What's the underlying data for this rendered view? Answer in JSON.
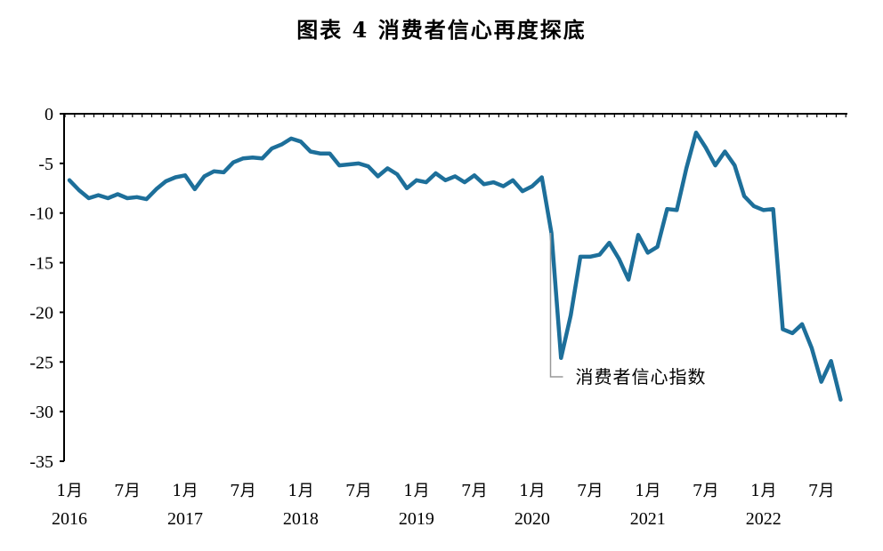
{
  "chart_data": {
    "type": "line",
    "title": "图表 4 消费者信心再度探底",
    "xlabel": "",
    "ylabel": "",
    "ylim": [
      -35,
      0
    ],
    "yticks": [
      0,
      -5,
      -10,
      -15,
      -20,
      -25,
      -30,
      -35
    ],
    "x_tick_labels": [
      {
        "month": "1月",
        "year": "2016"
      },
      {
        "month": "7月",
        "year": ""
      },
      {
        "month": "1月",
        "year": "2017"
      },
      {
        "month": "7月",
        "year": ""
      },
      {
        "month": "1月",
        "year": "2018"
      },
      {
        "month": "7月",
        "year": ""
      },
      {
        "month": "1月",
        "year": "2019"
      },
      {
        "month": "7月",
        "year": ""
      },
      {
        "month": "1月",
        "year": "2020"
      },
      {
        "month": "7月",
        "year": ""
      },
      {
        "month": "1月",
        "year": "2021"
      },
      {
        "month": "7月",
        "year": ""
      },
      {
        "month": "1月",
        "year": "2022"
      },
      {
        "month": "7月",
        "year": ""
      }
    ],
    "color": "#1d6f9a",
    "series": [
      {
        "name": "消费者信心指数",
        "start": "2016-01",
        "values": [
          -6.7,
          -7.7,
          -8.5,
          -8.2,
          -8.5,
          -8.1,
          -8.5,
          -8.4,
          -8.6,
          -7.6,
          -6.8,
          -6.4,
          -6.2,
          -7.6,
          -6.3,
          -5.8,
          -5.9,
          -4.9,
          -4.5,
          -4.4,
          -4.5,
          -3.5,
          -3.1,
          -2.5,
          -2.8,
          -3.8,
          -4.0,
          -4.0,
          -5.2,
          -5.1,
          -5.0,
          -5.3,
          -6.3,
          -5.5,
          -6.1,
          -7.5,
          -6.7,
          -6.9,
          -6.0,
          -6.7,
          -6.3,
          -6.9,
          -6.2,
          -7.1,
          -6.9,
          -7.3,
          -6.7,
          -7.8,
          -7.3,
          -6.4,
          -12.0,
          -24.6,
          -20.3,
          -14.4,
          -14.4,
          -14.2,
          -13.0,
          -14.6,
          -16.7,
          -12.2,
          -14.0,
          -13.4,
          -9.6,
          -9.7,
          -5.5,
          -1.9,
          -3.4,
          -5.2,
          -3.8,
          -5.2,
          -8.3,
          -9.3,
          -9.7,
          -9.6,
          -21.7,
          -22.1,
          -21.2,
          -23.6,
          -27.0,
          -24.9,
          -28.8
        ]
      }
    ],
    "annotations": [
      {
        "text": "消费者信心指数",
        "anchor_date": "2020-03"
      }
    ],
    "grid": false,
    "legend": "none"
  }
}
